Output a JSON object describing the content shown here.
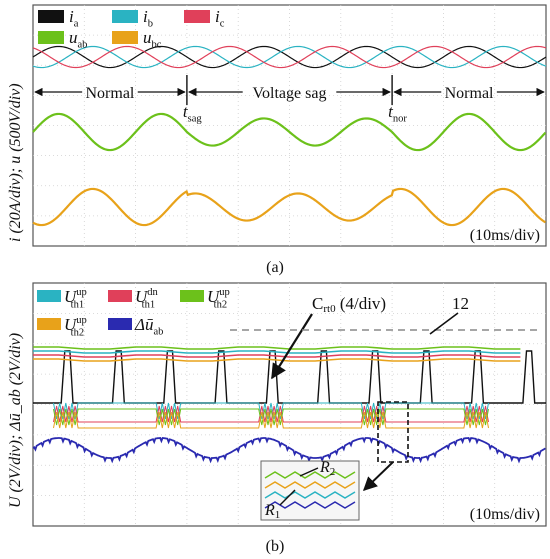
{
  "chart_data": [
    {
      "type": "line",
      "panel": "(a)",
      "ylabel": "i (20A/div);   u (500V/div)",
      "time_scale": "(10ms/div)",
      "x_unit": "ms",
      "x_range": [
        0,
        100
      ],
      "legend": [
        {
          "symbol": "i",
          "sub": "a",
          "color": "#111111"
        },
        {
          "symbol": "i",
          "sub": "b",
          "color": "#2ab3c2"
        },
        {
          "symbol": "i",
          "sub": "c",
          "color": "#e0405a"
        },
        {
          "symbol": "u",
          "sub": "ab",
          "color": "#6cc11b"
        },
        {
          "symbol": "u",
          "sub": "bc",
          "color": "#e8a21a"
        }
      ],
      "segments": [
        {
          "label": "Normal",
          "start_ms": 0,
          "end_ms": 30
        },
        {
          "label": "Voltage sag",
          "start_ms": 30,
          "end_ms": 70
        },
        {
          "label": "Normal",
          "start_ms": 70,
          "end_ms": 100
        }
      ],
      "event_markers": [
        {
          "symbol": "t",
          "sub": "sag",
          "time_ms": 30
        },
        {
          "symbol": "t",
          "sub": "nor",
          "time_ms": 70
        }
      ],
      "series": [
        {
          "name": "ia",
          "frequency_hz": 50,
          "amplitude_div": 0.35,
          "phase_deg": 0
        },
        {
          "name": "ib",
          "frequency_hz": 50,
          "amplitude_div": 0.35,
          "phase_deg": -120
        },
        {
          "name": "ic",
          "frequency_hz": 50,
          "amplitude_div": 0.35,
          "phase_deg": 120
        },
        {
          "name": "uab",
          "frequency_hz": 50,
          "amplitude_div": 0.6,
          "amplitude_div_during_sag": 0.45
        },
        {
          "name": "ubc",
          "frequency_hz": 50,
          "amplitude_div": 0.6,
          "amplitude_div_during_sag": 0.45
        }
      ],
      "grid": true
    },
    {
      "type": "line",
      "panel": "(b)",
      "ylabel": "U (2V/div);   Δū_ab (2V/div)",
      "time_scale": "(10ms/div)",
      "x_unit": "ms",
      "x_range": [
        0,
        100
      ],
      "legend": [
        {
          "symbol": "U",
          "sup": "up",
          "sub": "th1",
          "color": "#2ab3c2"
        },
        {
          "symbol": "U",
          "sup": "dn",
          "sub": "th1",
          "color": "#e0405a"
        },
        {
          "symbol": "U",
          "sup": "up",
          "sub": "th2",
          "color": "#6cc11b"
        },
        {
          "symbol": "U",
          "sup": "up",
          "sub": "th2",
          "color": "#e8a21a"
        },
        {
          "symbol": "Δū",
          "sub": "ab",
          "color": "#2a2ab0"
        }
      ],
      "annotations": [
        {
          "text": "Crt0 (4/div)",
          "main": "C",
          "sub": "rt0",
          "rest": " (4/div)"
        },
        {
          "text": "12",
          "dashed_level": 12
        },
        {
          "text": "R1",
          "main": "R",
          "sub": "1"
        },
        {
          "text": "R2",
          "main": "R",
          "sub": "2"
        }
      ],
      "pulse_period_ms": 10,
      "grid": true
    }
  ],
  "captions": {
    "a": "(a)",
    "b": "(b)"
  }
}
